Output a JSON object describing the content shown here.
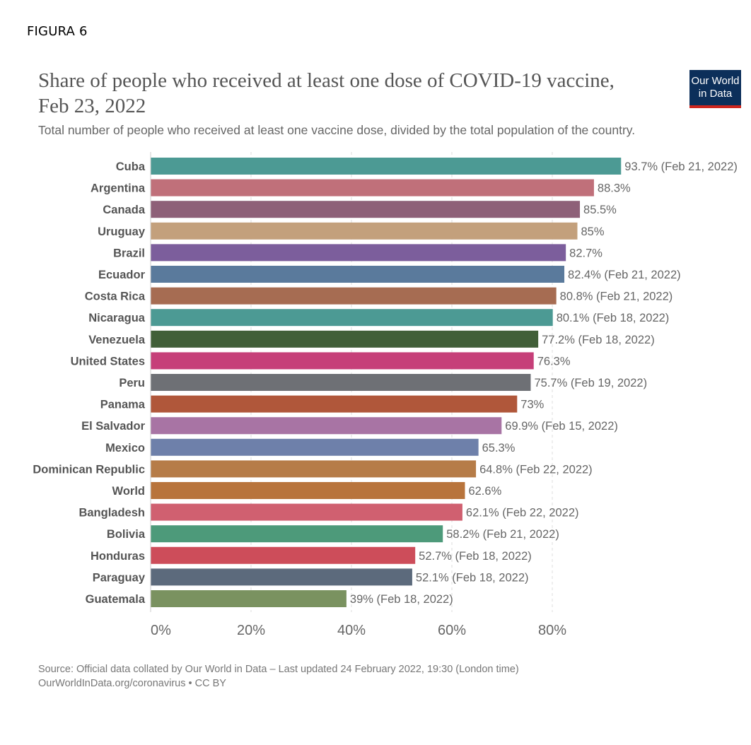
{
  "figure_label": "FIGURA 6",
  "title": "Share of people who received at least one dose of COVID-19 vaccine, Feb 23, 2022",
  "subtitle": "Total number of people who received at least one vaccine dose, divided by the total population of the country.",
  "logo": {
    "line1": "Our World",
    "line2": "in Data",
    "bg_color": "#0c2f5a",
    "accent_color": "#ce261e"
  },
  "footer": {
    "source": "Source: Official data collated by Our World in Data – Last updated 24 February 2022, 19:30 (London time)",
    "credit": "OurWorldInData.org/coronavirus • CC BY"
  },
  "chart_data": {
    "type": "bar",
    "orientation": "horizontal",
    "xlim": [
      0,
      100
    ],
    "x_ticks": [
      "0%",
      "20%",
      "40%",
      "60%",
      "80%"
    ],
    "x_tick_values": [
      0,
      20,
      40,
      60,
      80
    ],
    "grid": "vertical dashed",
    "categories": [
      "Cuba",
      "Argentina",
      "Canada",
      "Uruguay",
      "Brazil",
      "Ecuador",
      "Costa Rica",
      "Nicaragua",
      "Venezuela",
      "United States",
      "Peru",
      "Panama",
      "El Salvador",
      "Mexico",
      "Dominican Republic",
      "World",
      "Bangladesh",
      "Bolivia",
      "Honduras",
      "Paraguay",
      "Guatemala"
    ],
    "values": [
      93.7,
      88.3,
      85.5,
      85,
      82.7,
      82.4,
      80.8,
      80.1,
      77.2,
      76.3,
      75.7,
      73,
      69.9,
      65.3,
      64.8,
      62.6,
      62.1,
      58.2,
      52.7,
      52.1,
      39
    ],
    "labels": [
      "93.7% (Feb 21, 2022)",
      "88.3%",
      "85.5%",
      "85%",
      "82.7%",
      "82.4% (Feb 21, 2022)",
      "80.8% (Feb 21, 2022)",
      "80.1% (Feb 18, 2022)",
      "77.2% (Feb 18, 2022)",
      "76.3%",
      "75.7% (Feb 19, 2022)",
      "73%",
      "69.9% (Feb 15, 2022)",
      "65.3%",
      "64.8% (Feb 22, 2022)",
      "62.6%",
      "62.1% (Feb 22, 2022)",
      "58.2% (Feb 21, 2022)",
      "52.7% (Feb 18, 2022)",
      "52.1% (Feb 18, 2022)",
      "39% (Feb 18, 2022)"
    ],
    "colors": [
      "#4c9a94",
      "#c0707a",
      "#8e6078",
      "#c3a07c",
      "#7c5e9c",
      "#5a7a9c",
      "#a66c52",
      "#4c9a94",
      "#415f38",
      "#c63f79",
      "#6e7075",
      "#b0573a",
      "#a874a4",
      "#6e80aa",
      "#b67c48",
      "#b8743c",
      "#d06070",
      "#4d9a7a",
      "#cd4d5a",
      "#5c6a7c",
      "#7a9260"
    ]
  }
}
